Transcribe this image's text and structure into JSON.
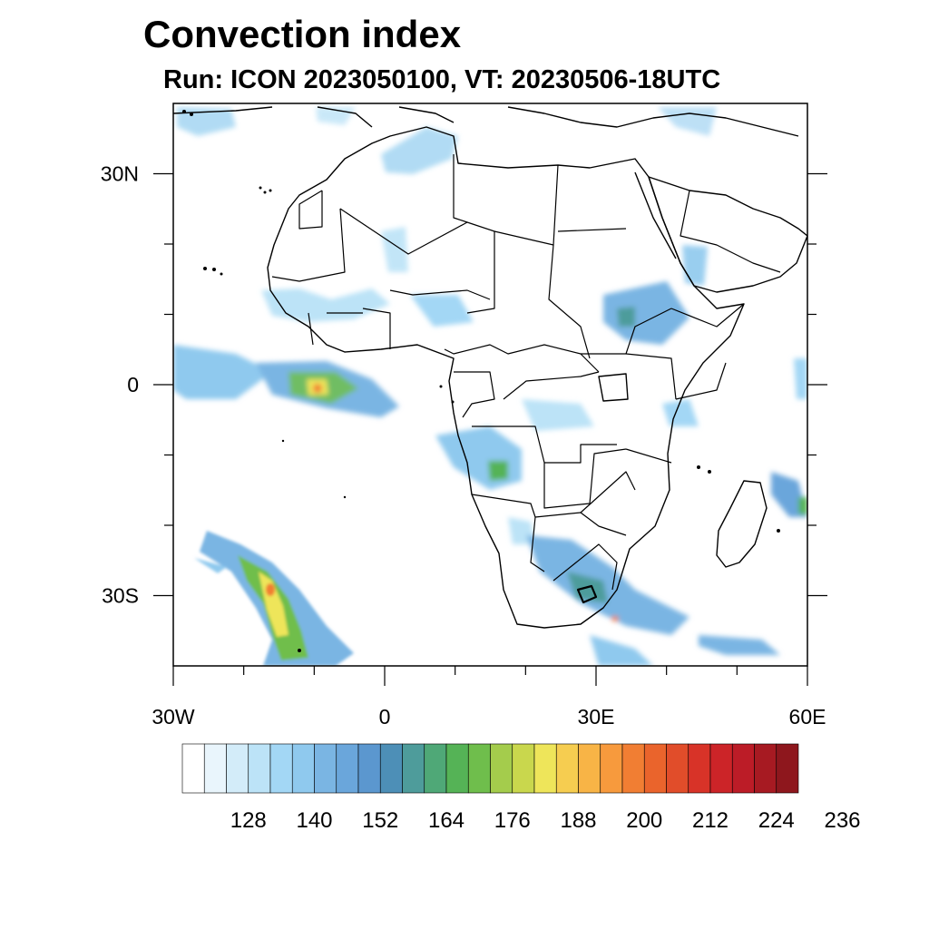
{
  "title": "Convection index",
  "subtitle": "Run: ICON 2023050100,  VT: 20230506-18UTC",
  "map": {
    "region": "Africa",
    "lon_range": [
      -30,
      60
    ],
    "lat_range": [
      -40,
      40
    ],
    "lon_ticks": [
      {
        "lon": -30,
        "label": "30W"
      },
      {
        "lon": 0,
        "label": "0"
      },
      {
        "lon": 30,
        "label": "30E"
      },
      {
        "lon": 60,
        "label": "60E"
      }
    ],
    "lat_ticks": [
      {
        "lat": 30,
        "label": "30N"
      },
      {
        "lat": 0,
        "label": "0"
      },
      {
        "lat": -30,
        "label": "30S"
      }
    ]
  },
  "colorbar": {
    "colors": [
      "#ffffff",
      "#e9f5fc",
      "#d3ecf9",
      "#bce3f7",
      "#a3d7f5",
      "#8fc9ee",
      "#7ab5e3",
      "#6aa6db",
      "#5b97cf",
      "#4d8fb7",
      "#4e9c9b",
      "#4fa877",
      "#55b356",
      "#6fbe4c",
      "#a4cc4c",
      "#c9d74d",
      "#eee55a",
      "#f6cd50",
      "#f8b446",
      "#f79a3d",
      "#f17e33",
      "#ea642c",
      "#e14d2a",
      "#d83328",
      "#cc2428",
      "#bc1c27",
      "#a71a22",
      "#8e171d"
    ],
    "labels": [
      "128",
      "140",
      "152",
      "164",
      "176",
      "188",
      "200",
      "212",
      "224",
      "236"
    ]
  },
  "convection_areas": [
    {
      "lon": -22,
      "lat": 1.5,
      "intensity": 0.45
    },
    {
      "lon": -10,
      "lat": 0.3,
      "intensity": 0.95
    },
    {
      "lon": 16,
      "lat": -12,
      "intensity": 0.6
    },
    {
      "lon": 38,
      "lat": 10,
      "intensity": 0.5
    },
    {
      "lon": -12,
      "lat": -30,
      "intensity": 0.95
    },
    {
      "lon": 30,
      "lat": -30,
      "intensity": 0.7
    },
    {
      "lon": 45,
      "lat": -37,
      "intensity": 0.35
    },
    {
      "lon": 59,
      "lat": -17,
      "intensity": 0.45
    }
  ]
}
